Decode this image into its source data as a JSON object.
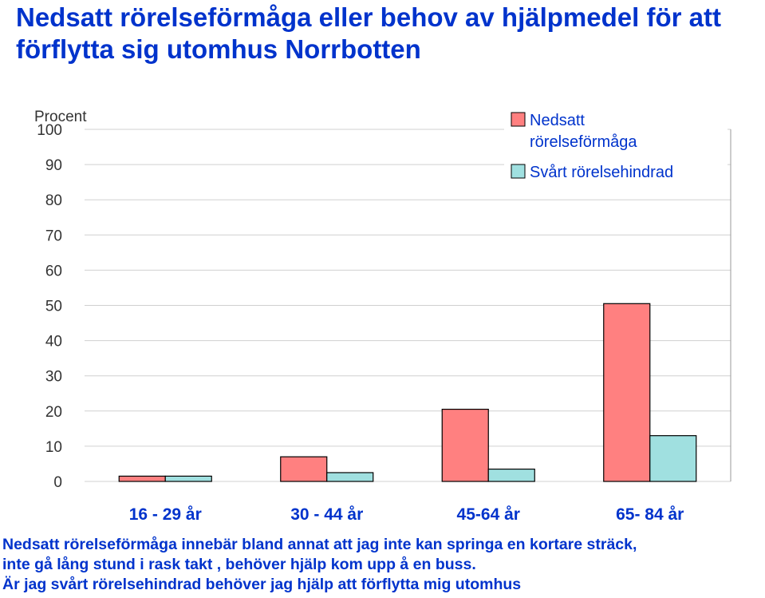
{
  "title": "Nedsatt rörelseförmåga eller behov av hjälpmedel för att förflytta sig utomhus Norrbotten",
  "footnote": {
    "line1": "Nedsatt rörelseförmåga innebär bland annat  att jag inte kan springa en kortare sträck,",
    "line2": "inte gå lång stund i rask takt , behöver hjälp kom upp å en buss.",
    "line3": "Är jag svårt rörelsehindrad behöver jag hjälp att förflytta mig utomhus"
  },
  "chart_data": {
    "type": "bar",
    "title": "",
    "ylabel": "Procent",
    "xlabel": "",
    "ylim": [
      0,
      100
    ],
    "yticks": [
      0,
      10,
      20,
      30,
      40,
      50,
      60,
      70,
      80,
      90,
      100
    ],
    "categories": [
      "16 - 29 år",
      "30 - 44 år",
      "45-64 år",
      "65- 84 år"
    ],
    "series": [
      {
        "name": "Nedsatt rörelseförmåga",
        "color": "#ff8080",
        "values": [
          1.5,
          7,
          20.5,
          50.5
        ]
      },
      {
        "name": "Svårt rörelsehindrad",
        "color": "#a0e0e0",
        "values": [
          1.5,
          2.5,
          3.5,
          13
        ]
      }
    ],
    "grid": true,
    "legend": "top-right"
  }
}
